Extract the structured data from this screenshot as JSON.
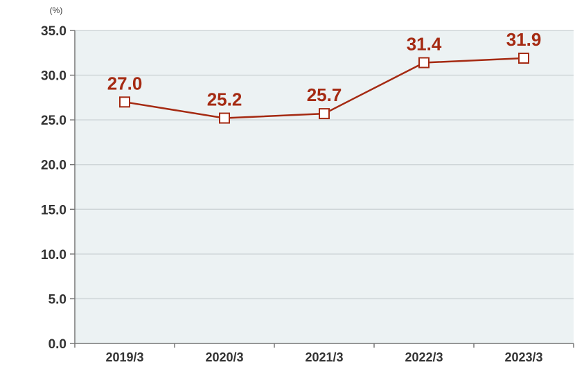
{
  "chart_data": {
    "type": "line",
    "unit_label": "(%)",
    "categories": [
      "2019/3",
      "2020/3",
      "2021/3",
      "2022/3",
      "2023/3"
    ],
    "series": [
      {
        "values": [
          27.0,
          25.2,
          25.7,
          31.4,
          31.9
        ]
      }
    ],
    "data_labels": [
      "27.0",
      "25.2",
      "25.7",
      "31.4",
      "31.9"
    ],
    "y_ticks": [
      "0.0",
      "5.0",
      "10.0",
      "15.0",
      "20.0",
      "25.0",
      "30.0",
      "35.0"
    ],
    "ylim": [
      0,
      35
    ],
    "grid": true,
    "colors": {
      "line": "#a52a12",
      "plot_background": "#ecf2f3",
      "grid": "#cfd6d8",
      "axis": "#777777",
      "marker_fill": "#ffffff"
    }
  }
}
